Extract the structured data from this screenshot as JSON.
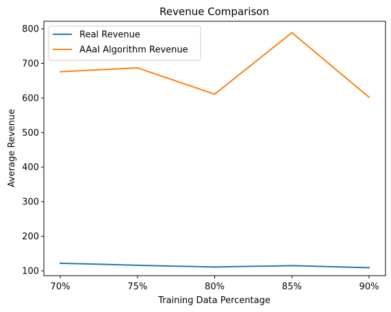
{
  "chart_data": {
    "type": "line",
    "title": "Revenue Comparison",
    "xlabel": "Training Data Percentage",
    "ylabel": "Average Revenue",
    "categories": [
      "70%",
      "75%",
      "80%",
      "85%",
      "90%"
    ],
    "ylim": [
      86,
      822
    ],
    "yticks": [
      100,
      200,
      300,
      400,
      500,
      600,
      700,
      800
    ],
    "grid": false,
    "legend_position": "top-left",
    "series": [
      {
        "name": "Real Revenue",
        "color": "#1f77b4",
        "values": [
          122,
          116,
          111,
          115,
          109
        ]
      },
      {
        "name": "AAaI Algorithm Revenue",
        "color": "#ff7f0e",
        "values": [
          676,
          687,
          611,
          789,
          602
        ]
      }
    ]
  }
}
